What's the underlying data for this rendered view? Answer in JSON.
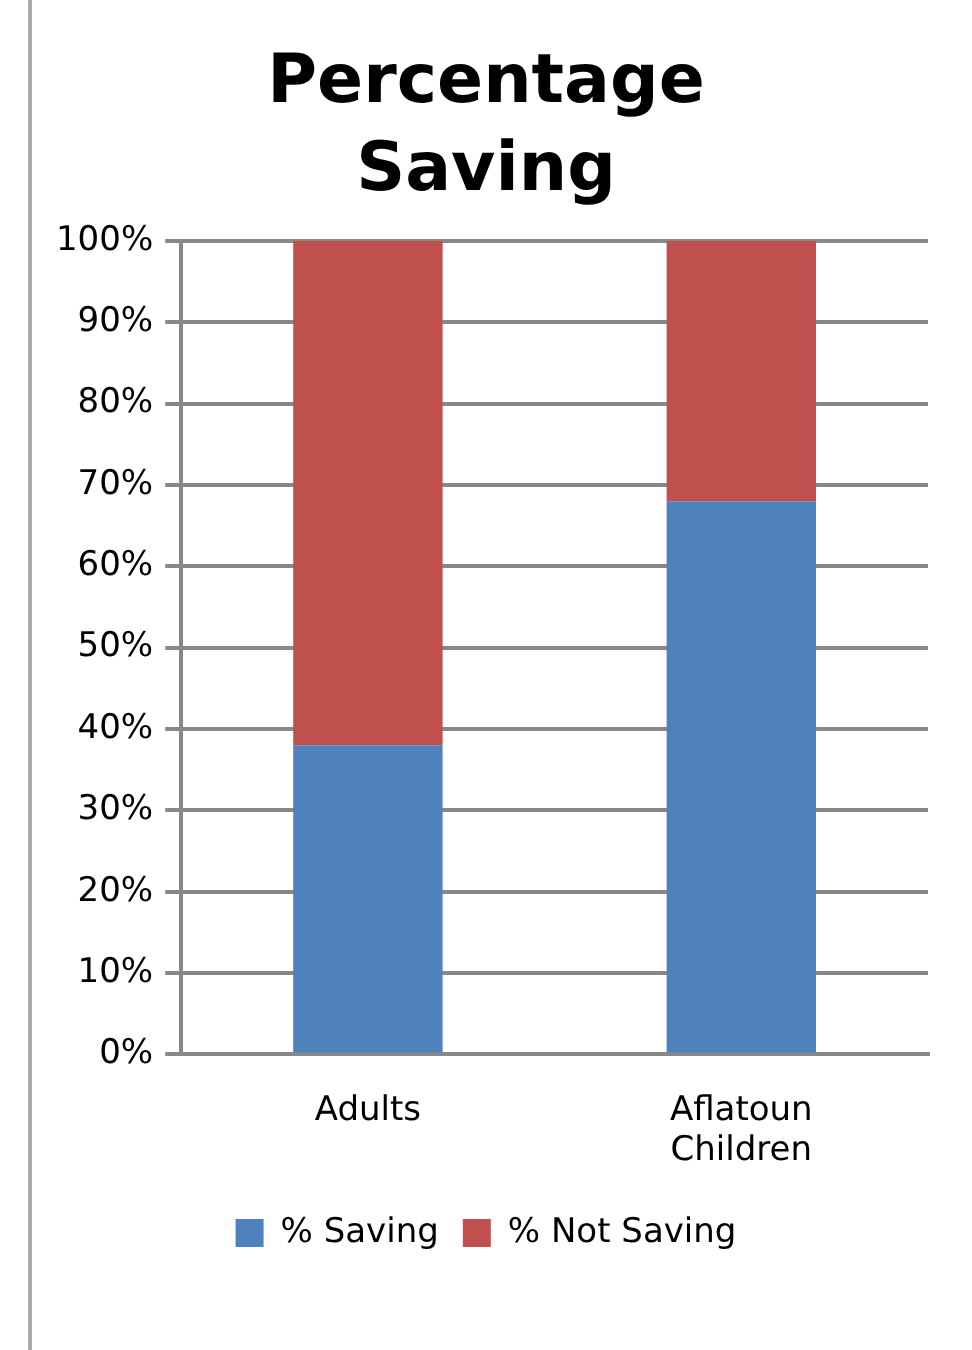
{
  "chart_data": {
    "type": "bar",
    "title": "Percentage Saving",
    "categories": [
      "Adults",
      "Aflatoun Children"
    ],
    "stacked": true,
    "series": [
      {
        "name": "% Saving",
        "color": "#4f81bd",
        "values": [
          38,
          68
        ]
      },
      {
        "name": "% Not Saving",
        "color": "#c0504d",
        "values": [
          62,
          32
        ]
      }
    ],
    "ylim": [
      0,
      100
    ],
    "yticks": [
      {
        "value": 0,
        "label": "0%"
      },
      {
        "value": 10,
        "label": "10%"
      },
      {
        "value": 20,
        "label": "20%"
      },
      {
        "value": 30,
        "label": "30%"
      },
      {
        "value": 40,
        "label": "40%"
      },
      {
        "value": 50,
        "label": "50%"
      },
      {
        "value": 60,
        "label": "60%"
      },
      {
        "value": 70,
        "label": "70%"
      },
      {
        "value": 80,
        "label": "80%"
      },
      {
        "value": 90,
        "label": "90%"
      },
      {
        "value": 100,
        "label": "100%"
      }
    ],
    "grid": "y",
    "legend": "bottom"
  }
}
